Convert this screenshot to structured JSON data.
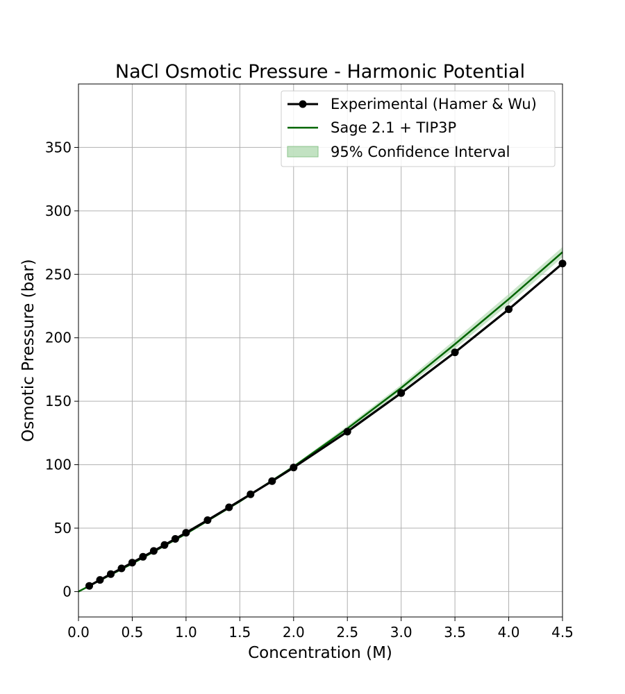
{
  "chart_data": {
    "type": "line",
    "title": "NaCl Osmotic Pressure - Harmonic Potential",
    "xlabel": "Concentration (M)",
    "ylabel": "Osmotic Pressure (bar)",
    "xlim": [
      0.0,
      4.5
    ],
    "ylim": [
      -20,
      400
    ],
    "xticks": [
      "0.0",
      "0.5",
      "1.0",
      "1.5",
      "2.0",
      "2.5",
      "3.0",
      "3.5",
      "4.0",
      "4.5"
    ],
    "yticks": [
      "0",
      "50",
      "100",
      "150",
      "200",
      "250",
      "300",
      "350"
    ],
    "grid": true,
    "legend_position": "top-right",
    "colors": {
      "experimental": "#000000",
      "simulation": "#006400",
      "confidence": "#a8d5a8",
      "grid": "#b0b0b0"
    },
    "series": [
      {
        "name": "Experimental (Hamer & Wu)",
        "style": "line-with-markers",
        "x": [
          0.1,
          0.2,
          0.3,
          0.4,
          0.5,
          0.6,
          0.7,
          0.8,
          0.9,
          1.0,
          1.2,
          1.4,
          1.6,
          1.8,
          2.0,
          2.5,
          3.0,
          3.5,
          4.0,
          4.5
        ],
        "y": [
          4.5,
          9.2,
          13.8,
          18.3,
          22.8,
          27.4,
          32.0,
          36.7,
          41.5,
          46.4,
          56.3,
          66.4,
          76.7,
          87.1,
          97.8,
          126.0,
          156.5,
          188.5,
          222.5,
          258.5
        ]
      },
      {
        "name": "Sage 2.1 + TIP3P",
        "style": "line",
        "x": [
          0.0,
          0.5,
          1.0,
          1.5,
          2.0,
          2.5,
          3.0,
          3.5,
          4.0,
          4.5
        ],
        "y": [
          0.0,
          22.0,
          45.5,
          71.0,
          98.5,
          128.5,
          160.5,
          195.0,
          230.5,
          267.5
        ]
      },
      {
        "name": "95% Confidence Interval",
        "style": "band",
        "x": [
          0.0,
          0.5,
          1.0,
          1.5,
          2.0,
          2.5,
          3.0,
          3.5,
          4.0,
          4.5
        ],
        "lower": [
          0.0,
          21.5,
          45.0,
          70.0,
          97.5,
          126.5,
          158.0,
          191.5,
          226.5,
          263.5
        ],
        "upper": [
          0.5,
          22.5,
          46.0,
          72.0,
          99.5,
          130.5,
          163.0,
          198.5,
          234.5,
          271.5
        ]
      }
    ]
  }
}
